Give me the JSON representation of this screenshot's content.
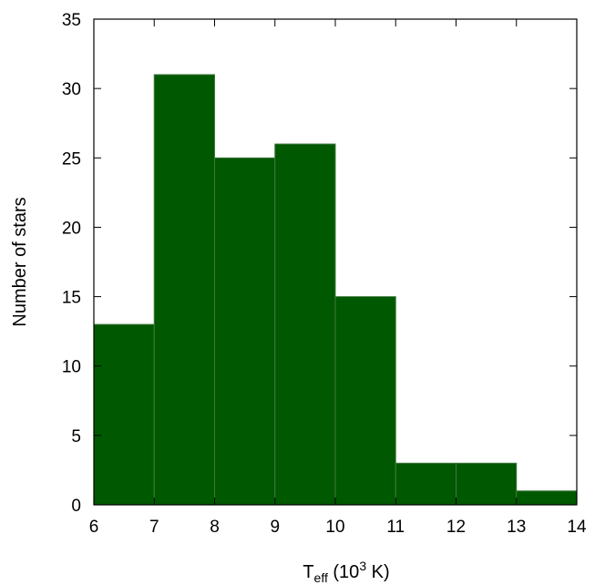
{
  "chart_data": {
    "type": "bar",
    "bins": [
      {
        "from": 6,
        "to": 7,
        "value": 13
      },
      {
        "from": 7,
        "to": 8,
        "value": 31
      },
      {
        "from": 8,
        "to": 9,
        "value": 25
      },
      {
        "from": 9,
        "to": 10,
        "value": 26
      },
      {
        "from": 10,
        "to": 11,
        "value": 15
      },
      {
        "from": 11,
        "to": 12,
        "value": 3
      },
      {
        "from": 12,
        "to": 13,
        "value": 3
      },
      {
        "from": 13,
        "to": 14,
        "value": 1
      }
    ],
    "xlim": [
      6,
      14
    ],
    "ylim": [
      0,
      35
    ],
    "xticks": [
      "6",
      "7",
      "8",
      "9",
      "10",
      "11",
      "12",
      "13",
      "14"
    ],
    "yticks": [
      "0",
      "5",
      "10",
      "15",
      "20",
      "25",
      "30",
      "35"
    ],
    "xlabel": {
      "main": "T",
      "subscript": "eff",
      "prefix": " (10",
      "superscript": "3",
      "suffix": " K)"
    },
    "ylabel": "Number of stars",
    "bar_color": "#005800",
    "bar_edge_color": "#3f7a3f",
    "grid": false
  }
}
